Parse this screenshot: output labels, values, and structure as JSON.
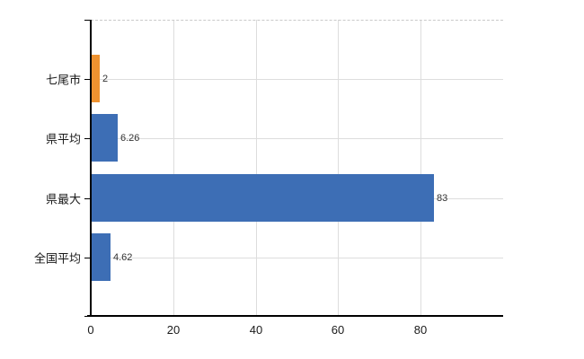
{
  "chart_data": {
    "type": "bar",
    "orientation": "horizontal",
    "title": "",
    "xlabel": "",
    "ylabel": "",
    "categories": [
      "七尾市",
      "県平均",
      "県最大",
      "全国平均"
    ],
    "values": [
      2,
      6.26,
      83,
      4.62
    ],
    "value_labels": [
      "2",
      "6.26",
      "83",
      "4.62"
    ],
    "bar_colors": [
      "#EE9230",
      "#3D6EB5",
      "#3D6EB5",
      "#3D6EB5"
    ],
    "x_ticks": [
      0,
      20,
      40,
      60,
      80
    ],
    "x_tick_labels": [
      "0",
      "20",
      "40",
      "60",
      "80"
    ],
    "xlim": [
      0,
      100
    ],
    "grid": true,
    "legend": false,
    "colors": {
      "highlight_bar": "#EE9230",
      "default_bar": "#3D6EB5",
      "axis": "#000000",
      "gridline": "#DDDDDD",
      "top_border_dashed": "#C9C9C9",
      "category_text": "#1A1A1A",
      "tick_text": "#1A1A1A",
      "value_text": "#333333",
      "background": "#FFFFFF"
    }
  }
}
